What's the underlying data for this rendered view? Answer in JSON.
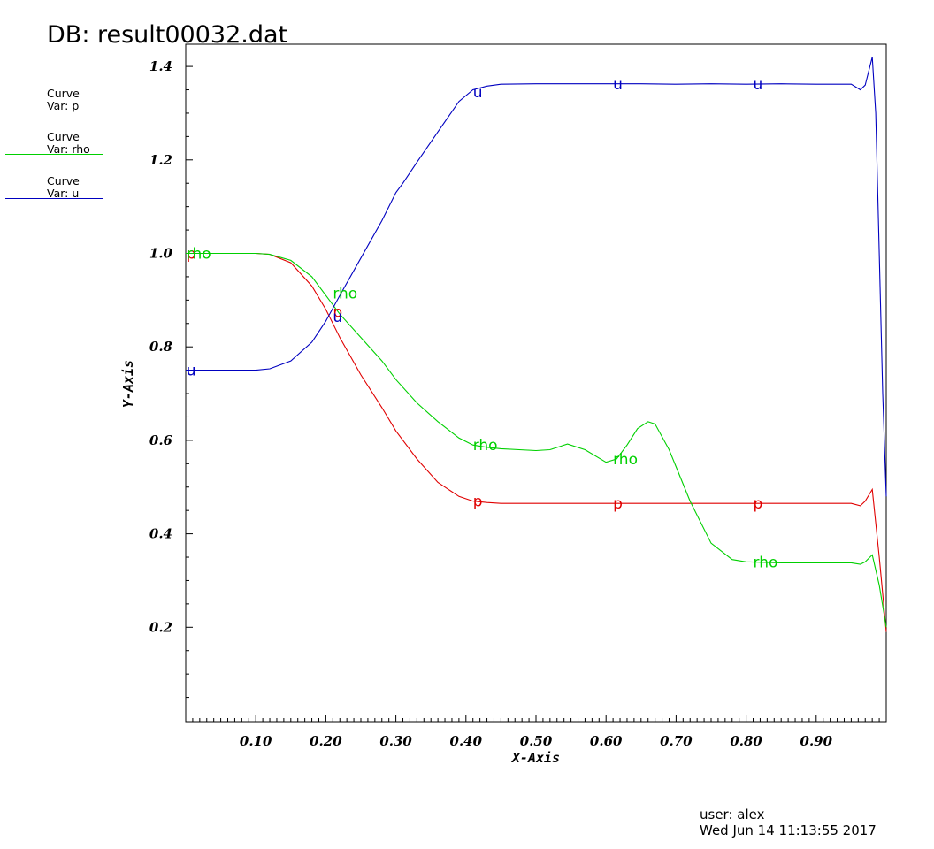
{
  "db_title": "DB: result00032.dat",
  "legend": [
    {
      "curve": "Curve",
      "var": "Var: p",
      "color": "#e00000"
    },
    {
      "curve": "Curve",
      "var": "Var: rho",
      "color": "#00d000"
    },
    {
      "curve": "Curve",
      "var": "Var: u",
      "color": "#0000c0"
    }
  ],
  "footer": {
    "user": "user: alex",
    "date": "Wed Jun 14 11:13:55 2017"
  },
  "chart_data": {
    "type": "line",
    "xlabel": "X-Axis",
    "ylabel": "Y-Axis",
    "xlim": [
      0.0,
      1.0
    ],
    "ylim": [
      0.0,
      1.45
    ],
    "x_ticks": [
      0.1,
      0.2,
      0.3,
      0.4,
      0.5,
      0.6,
      0.7,
      0.8,
      0.9
    ],
    "x_tick_labels": [
      "0.10",
      "0.20",
      "0.30",
      "0.40",
      "0.50",
      "0.60",
      "0.70",
      "0.80",
      "0.90"
    ],
    "y_ticks": [
      0.2,
      0.4,
      0.6,
      0.8,
      1.0,
      1.2,
      1.4
    ],
    "y_tick_labels": [
      "0.2",
      "0.4",
      "0.6",
      "0.8",
      "1.0",
      "1.2",
      "1.4"
    ],
    "grid": false,
    "series": [
      {
        "name": "p",
        "color": "#e00000",
        "x": [
          0.0,
          0.05,
          0.1,
          0.12,
          0.15,
          0.18,
          0.2,
          0.22,
          0.25,
          0.28,
          0.3,
          0.33,
          0.36,
          0.39,
          0.41,
          0.43,
          0.45,
          0.5,
          0.6,
          0.7,
          0.8,
          0.9,
          0.95,
          0.963,
          0.97,
          0.98,
          0.99,
          1.0
        ],
        "y": [
          1.0,
          1.0,
          1.0,
          0.998,
          0.98,
          0.93,
          0.88,
          0.82,
          0.74,
          0.67,
          0.62,
          0.56,
          0.51,
          0.48,
          0.47,
          0.467,
          0.465,
          0.465,
          0.465,
          0.465,
          0.465,
          0.465,
          0.465,
          0.46,
          0.47,
          0.495,
          0.35,
          0.19
        ],
        "labels": [
          {
            "x": 0.001,
            "y": 1.0
          },
          {
            "x": 0.21,
            "y": 0.875
          },
          {
            "x": 0.41,
            "y": 0.47
          },
          {
            "x": 0.61,
            "y": 0.465
          },
          {
            "x": 0.81,
            "y": 0.465
          }
        ]
      },
      {
        "name": "rho",
        "color": "#00d000",
        "x": [
          0.0,
          0.05,
          0.1,
          0.12,
          0.15,
          0.18,
          0.2,
          0.22,
          0.25,
          0.28,
          0.3,
          0.33,
          0.36,
          0.39,
          0.41,
          0.43,
          0.45,
          0.5,
          0.52,
          0.545,
          0.57,
          0.6,
          0.615,
          0.63,
          0.645,
          0.66,
          0.67,
          0.69,
          0.72,
          0.75,
          0.78,
          0.8,
          0.85,
          0.9,
          0.95,
          0.963,
          0.97,
          0.98,
          0.99,
          1.0
        ],
        "y": [
          1.0,
          1.0,
          1.0,
          0.998,
          0.985,
          0.95,
          0.91,
          0.87,
          0.82,
          0.77,
          0.73,
          0.68,
          0.64,
          0.605,
          0.59,
          0.585,
          0.582,
          0.578,
          0.58,
          0.592,
          0.58,
          0.553,
          0.56,
          0.59,
          0.625,
          0.64,
          0.635,
          0.58,
          0.47,
          0.38,
          0.345,
          0.34,
          0.338,
          0.338,
          0.338,
          0.335,
          0.34,
          0.355,
          0.29,
          0.2
        ],
        "labels": [
          {
            "x": 0.001,
            "y": 1.0
          },
          {
            "x": 0.21,
            "y": 0.915
          },
          {
            "x": 0.41,
            "y": 0.59
          },
          {
            "x": 0.61,
            "y": 0.56
          },
          {
            "x": 0.81,
            "y": 0.34
          }
        ]
      },
      {
        "name": "u",
        "color": "#0000c0",
        "x": [
          0.0,
          0.05,
          0.1,
          0.12,
          0.15,
          0.18,
          0.2,
          0.22,
          0.25,
          0.28,
          0.3,
          0.31,
          0.33,
          0.36,
          0.39,
          0.41,
          0.43,
          0.45,
          0.5,
          0.55,
          0.6,
          0.65,
          0.7,
          0.75,
          0.8,
          0.85,
          0.9,
          0.95,
          0.963,
          0.97,
          0.98,
          0.985,
          0.99,
          0.995,
          1.0
        ],
        "y": [
          0.75,
          0.75,
          0.75,
          0.753,
          0.77,
          0.81,
          0.855,
          0.91,
          0.99,
          1.07,
          1.13,
          1.15,
          1.195,
          1.26,
          1.325,
          1.35,
          1.358,
          1.362,
          1.363,
          1.363,
          1.363,
          1.363,
          1.362,
          1.363,
          1.362,
          1.363,
          1.362,
          1.362,
          1.35,
          1.36,
          1.42,
          1.3,
          1.0,
          0.7,
          0.48
        ],
        "labels": [
          {
            "x": 0.001,
            "y": 0.75
          },
          {
            "x": 0.21,
            "y": 0.865
          },
          {
            "x": 0.41,
            "y": 1.345
          },
          {
            "x": 0.61,
            "y": 1.362
          },
          {
            "x": 0.81,
            "y": 1.362
          }
        ]
      }
    ]
  }
}
